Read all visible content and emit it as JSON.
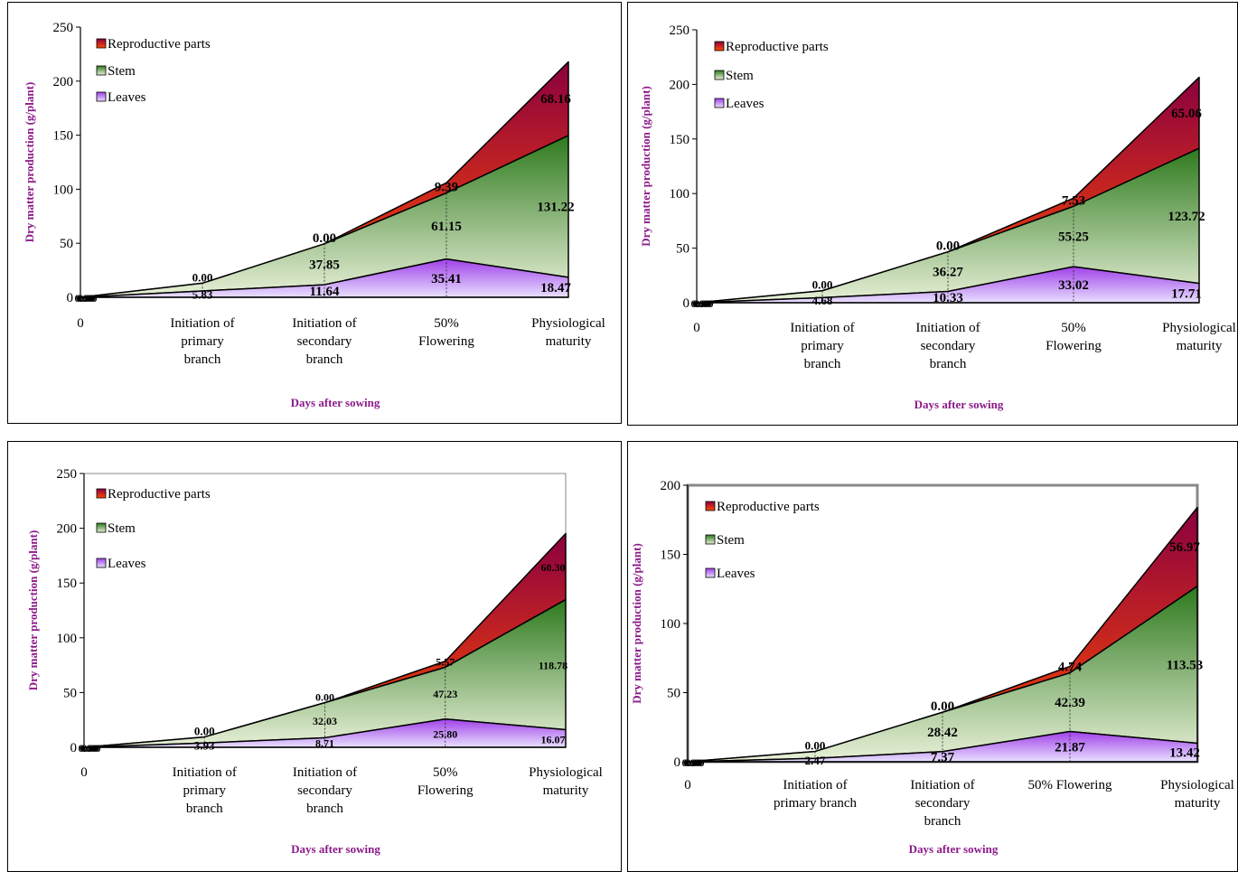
{
  "colors": {
    "reproductive_top": "#8B0040",
    "reproductive_bottom": "#FF4A00",
    "stem_top": "#2E7A1E",
    "stem_bottom": "#E8F0D8",
    "leaves_top": "#A040E8",
    "leaves_bottom": "#E8E0FF",
    "axis_title": "#8B1A89"
  },
  "chart_data": [
    {
      "type": "area",
      "stacked": true,
      "xlabel": "Days after sowing",
      "ylabel": "Dry matter production (g/plant)",
      "ylim": [
        0,
        250
      ],
      "ytick_step": 50,
      "categories": [
        [
          "0"
        ],
        [
          "Initiation of",
          "primary",
          "branch"
        ],
        [
          "Initiation of",
          "secondary",
          "branch"
        ],
        [
          "50%",
          "Flowering"
        ],
        [
          "Physiological",
          "maturity"
        ]
      ],
      "legend": [
        "Reproductive parts",
        "Stem",
        "Leaves"
      ],
      "series": [
        {
          "name": "Leaves",
          "values": [
            0.0,
            5.83,
            11.64,
            35.41,
            18.47
          ],
          "labels": [
            "0.00",
            "5.83",
            "11.64",
            "35.41",
            "18.47"
          ]
        },
        {
          "name": "Stem",
          "values": [
            0.0,
            7.2,
            37.85,
            61.15,
            131.22
          ],
          "labels": [
            "0.00",
            "",
            "37.85",
            "61.15",
            "131.22"
          ]
        },
        {
          "name": "Reproductive parts",
          "values": [
            0.0,
            0.0,
            0.0,
            9.39,
            68.16
          ],
          "labels": [
            "0.00",
            "0.00",
            "0.00",
            "9.39",
            "68.16"
          ]
        }
      ]
    },
    {
      "type": "area",
      "stacked": true,
      "xlabel": "Days after sowing",
      "ylabel": "Dry matter production (g/plant)",
      "ylim": [
        0,
        250
      ],
      "ytick_step": 50,
      "categories": [
        [
          "0"
        ],
        [
          "Initiation of",
          "primary",
          "branch"
        ],
        [
          "Initiation of",
          "secondary",
          "branch"
        ],
        [
          "50%",
          "Flowering"
        ],
        [
          "Physiological",
          "maturity"
        ]
      ],
      "legend": [
        "Reproductive parts",
        "Stem",
        "Leaves"
      ],
      "series": [
        {
          "name": "Leaves",
          "values": [
            0.0,
            4.68,
            10.33,
            33.02,
            17.71
          ],
          "labels": [
            "0.00",
            "4.68",
            "10.33",
            "33.02",
            "17.71"
          ]
        },
        {
          "name": "Stem",
          "values": [
            0.0,
            6.3,
            36.27,
            55.25,
            123.72
          ],
          "labels": [
            "0.00",
            "",
            "36.27",
            "55.25",
            "123.72"
          ]
        },
        {
          "name": "Reproductive parts",
          "values": [
            0.0,
            0.0,
            0.0,
            7.53,
            65.06
          ],
          "labels": [
            "0.00",
            "0.00",
            "0.00",
            "7.53",
            "65.06"
          ]
        }
      ]
    },
    {
      "type": "area",
      "stacked": true,
      "xlabel": "Days after sowing",
      "ylabel": "Dry matter production (g/plant)",
      "ylim": [
        0,
        250
      ],
      "ytick_step": 50,
      "categories": [
        [
          "0"
        ],
        [
          "Initiation of",
          "primary",
          "branch"
        ],
        [
          "Initiation of",
          "secondary",
          "branch"
        ],
        [
          "50%",
          "Flowering"
        ],
        [
          "Physiological",
          "maturity"
        ]
      ],
      "legend": [
        "Reproductive parts",
        "Stem",
        "Leaves"
      ],
      "series": [
        {
          "name": "Leaves",
          "values": [
            0.0,
            3.93,
            8.71,
            25.8,
            16.07
          ],
          "labels": [
            "0.00",
            "3.93",
            "8.71",
            "25.80",
            "16.07"
          ]
        },
        {
          "name": "Stem",
          "values": [
            0.0,
            5.5,
            32.03,
            47.23,
            118.78
          ],
          "labels": [
            "0.00",
            "",
            "32.03",
            "47.23",
            "118.78"
          ]
        },
        {
          "name": "Reproductive parts",
          "values": [
            0.0,
            0.0,
            0.0,
            5.57,
            60.3
          ],
          "labels": [
            "0.00",
            "0.00",
            "0.00",
            "5.57",
            "60.30"
          ]
        }
      ]
    },
    {
      "type": "area",
      "stacked": true,
      "xlabel": "Days after sowing",
      "ylabel": "Dry matter production (g/plant)",
      "ylim": [
        0,
        200
      ],
      "ytick_step": 50,
      "categories": [
        [
          "0"
        ],
        [
          "Initiation of",
          "primary branch"
        ],
        [
          "Initiation of",
          "secondary",
          "branch"
        ],
        [
          "50% Flowering"
        ],
        [
          "Physiological",
          "maturity"
        ]
      ],
      "legend": [
        "Reproductive parts",
        "Stem",
        "Leaves"
      ],
      "series": [
        {
          "name": "Leaves",
          "values": [
            0.0,
            2.47,
            7.37,
            21.87,
            13.42
          ],
          "labels": [
            "0.00",
            "2.47",
            "7.37",
            "21.87",
            "13.42"
          ]
        },
        {
          "name": "Stem",
          "values": [
            0.0,
            5.0,
            28.42,
            42.39,
            113.53
          ],
          "labels": [
            "0.00",
            "",
            "28.42",
            "42.39",
            "113.53"
          ]
        },
        {
          "name": "Reproductive parts",
          "values": [
            0.0,
            0.0,
            0.0,
            4.74,
            56.97
          ],
          "labels": [
            "0.00",
            "0.00",
            "0.00",
            "4.74",
            "56.97"
          ]
        }
      ]
    }
  ]
}
